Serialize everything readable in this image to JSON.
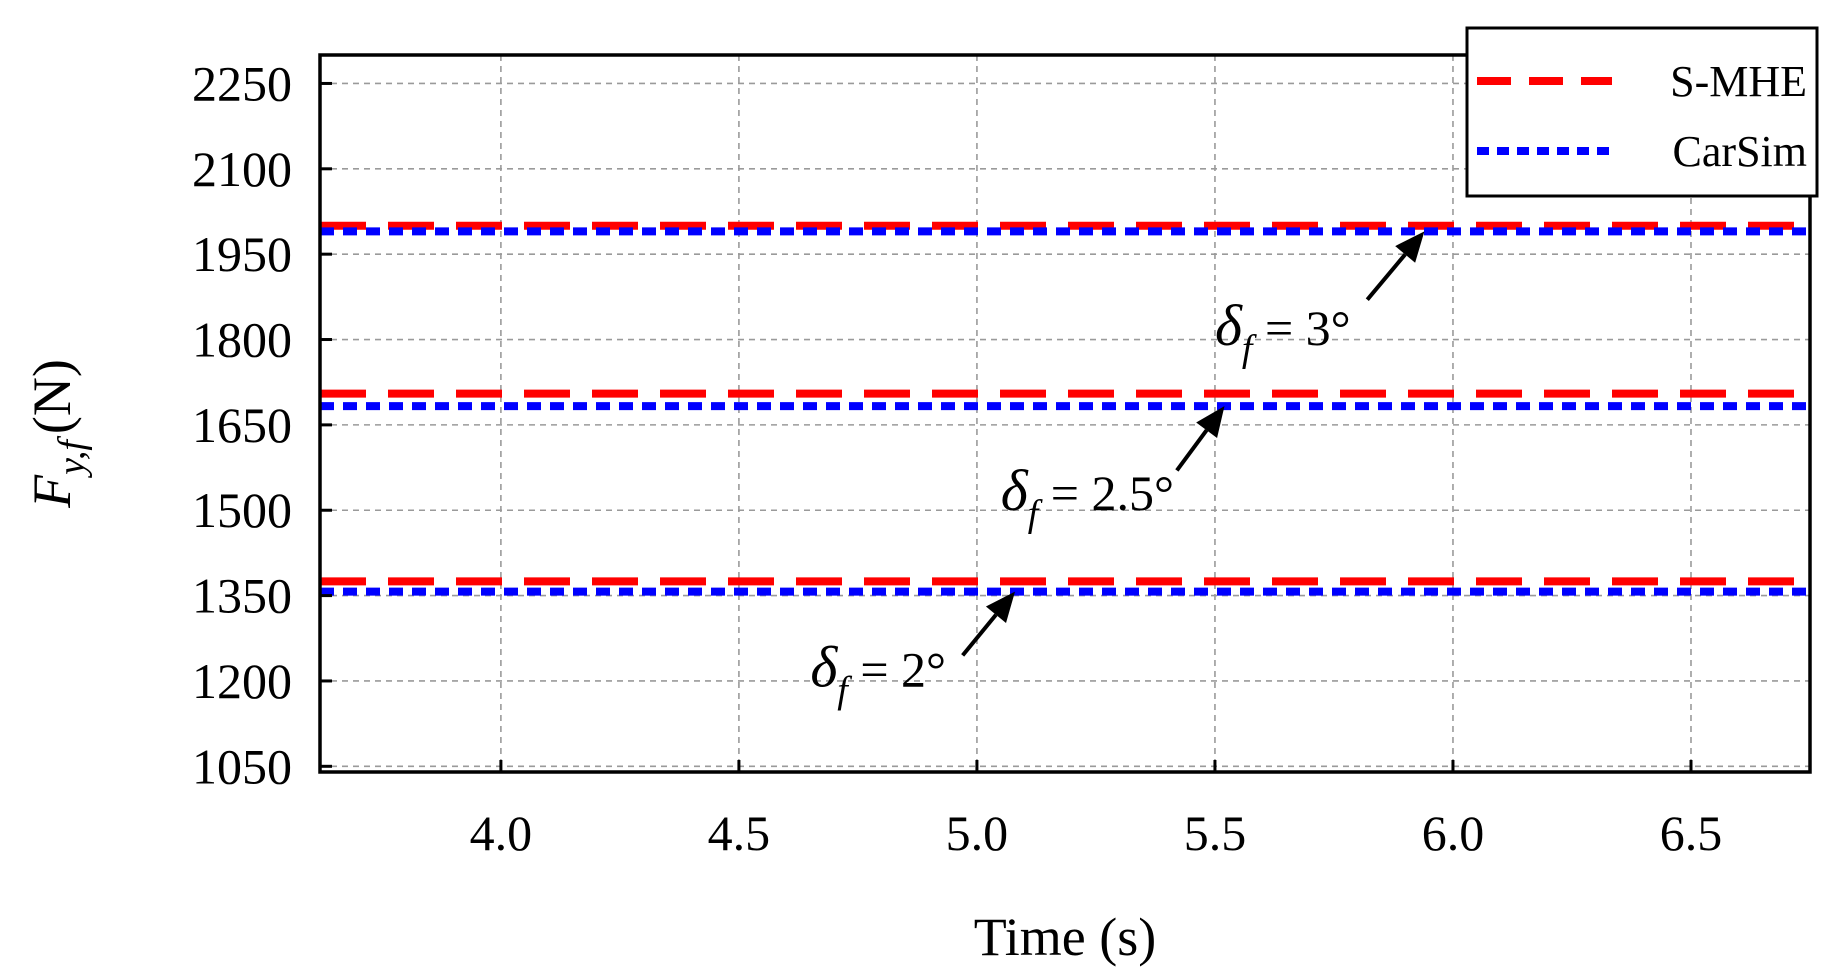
{
  "chart_data": {
    "type": "line",
    "xlabel": "Time (s)",
    "ylabel": {
      "main": "F",
      "subscript": "y,f",
      "unit": "(N)"
    },
    "xlim": [
      3.62,
      6.75
    ],
    "ylim": [
      1040,
      2300
    ],
    "xticks": [
      4.0,
      4.5,
      5.0,
      5.5,
      6.0,
      6.5
    ],
    "xtick_labels": [
      "4.0",
      "4.5",
      "5.0",
      "5.5",
      "6.0",
      "6.5"
    ],
    "yticks": [
      1050,
      1200,
      1350,
      1500,
      1650,
      1800,
      1950,
      2100,
      2250
    ],
    "ytick_labels": [
      "1050",
      "1200",
      "1350",
      "1500",
      "1650",
      "1800",
      "1950",
      "2100",
      "2250"
    ],
    "grid": true,
    "legend_position": "top-right",
    "series": [
      {
        "name": "S-MHE",
        "color": "#ff0000",
        "style": "dashed",
        "segments": [
          {
            "x": [
              3.62,
              6.75
            ],
            "y": [
              1375,
              1375
            ]
          },
          {
            "x": [
              3.62,
              6.75
            ],
            "y": [
              1705,
              1705
            ]
          },
          {
            "x": [
              3.62,
              6.75
            ],
            "y": [
              2000,
              2000
            ]
          }
        ]
      },
      {
        "name": "CarSim",
        "color": "#0000ff",
        "style": "dotted",
        "segments": [
          {
            "x": [
              3.62,
              6.75
            ],
            "y": [
              1357,
              1357
            ]
          },
          {
            "x": [
              3.62,
              6.75
            ],
            "y": [
              1683,
              1683
            ]
          },
          {
            "x": [
              3.62,
              6.75
            ],
            "y": [
              1990,
              1990
            ]
          }
        ]
      }
    ],
    "annotations": [
      {
        "symbol": "δ",
        "subscript": "f",
        "text": " = 2°",
        "arrow_to": [
          5.08,
          1357
        ],
        "arrow_from": [
          4.97,
          1245
        ],
        "label_at": [
          4.65,
          1190
        ]
      },
      {
        "symbol": "δ",
        "subscript": "f",
        "text": " = 2.5°",
        "arrow_to": [
          5.52,
          1683
        ],
        "arrow_from": [
          5.42,
          1570
        ],
        "label_at": [
          5.05,
          1500
        ]
      },
      {
        "symbol": "δ",
        "subscript": "f",
        "text": " = 3°",
        "arrow_to": [
          5.94,
          1990
        ],
        "arrow_from": [
          5.82,
          1870
        ],
        "label_at": [
          5.5,
          1790
        ]
      }
    ]
  }
}
